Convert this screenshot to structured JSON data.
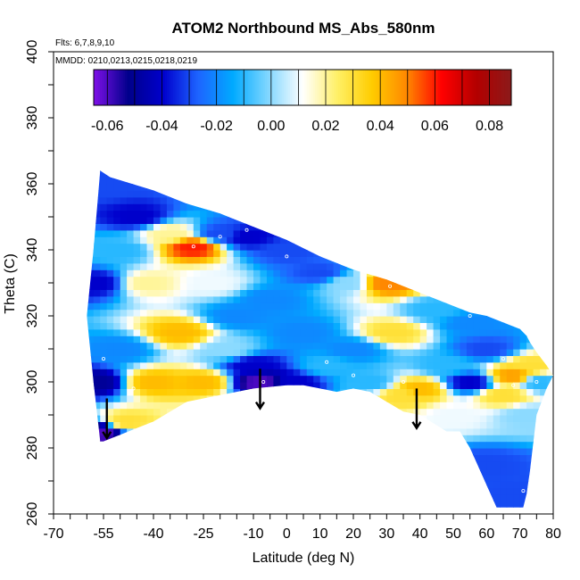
{
  "chart_data": {
    "type": "heatmap",
    "title": "ATOM2 Northbound MS_Abs_580nm",
    "subtitle_flights": "Flts: 6,7,8,9,10",
    "subtitle_dates": "MMDD: 0210,0213,0215,0218,0219",
    "xlabel": "Latitude (deg N)",
    "ylabel": "Theta (C)",
    "xlim": [
      -70,
      80
    ],
    "ylim": [
      260,
      400
    ],
    "x_ticks": [
      "-70",
      "-55",
      "-40",
      "-25",
      "-10",
      "0",
      "10",
      "20",
      "30",
      "40",
      "50",
      "60",
      "70",
      "80"
    ],
    "x_tick_values": [
      -70,
      -55,
      -40,
      -25,
      -10,
      0,
      10,
      20,
      30,
      40,
      50,
      60,
      70,
      80
    ],
    "y_ticks": [
      "260",
      "280",
      "300",
      "320",
      "340",
      "360",
      "380",
      "400"
    ],
    "y_tick_values": [
      260,
      280,
      300,
      320,
      340,
      360,
      380,
      400
    ],
    "colorbar": {
      "range": [
        -0.065,
        0.088
      ],
      "ticks": [
        "-0.06",
        "-0.04",
        "-0.02",
        "0.00",
        "0.02",
        "0.04",
        "0.06",
        "0.08"
      ],
      "tick_values": [
        -0.06,
        -0.04,
        -0.02,
        0.0,
        0.02,
        0.04,
        0.06,
        0.08
      ],
      "colors": [
        "#7f11e8",
        "#00008b",
        "#0000cd",
        "#1e64ff",
        "#00aaff",
        "#7fd6ff",
        "#ffffff",
        "#fff066",
        "#ffcc00",
        "#ff8800",
        "#ff0000",
        "#b30000",
        "#8b1a1a"
      ]
    },
    "upper_boundary": [
      [
        -56,
        364
      ],
      [
        -53,
        362
      ],
      [
        -40,
        358
      ],
      [
        -30,
        354
      ],
      [
        -20,
        351
      ],
      [
        -10,
        347
      ],
      [
        0,
        343
      ],
      [
        10,
        338
      ],
      [
        20,
        334
      ],
      [
        30,
        331
      ],
      [
        40,
        327
      ],
      [
        50,
        323
      ],
      [
        55,
        321
      ],
      [
        60,
        320
      ],
      [
        65,
        318
      ],
      [
        70,
        316
      ],
      [
        72,
        314
      ],
      [
        73,
        312
      ],
      [
        75,
        309
      ],
      [
        78,
        305
      ],
      [
        80,
        302
      ]
    ],
    "lower_boundary": [
      [
        80,
        302
      ],
      [
        78,
        298
      ],
      [
        75,
        290
      ],
      [
        73,
        273
      ],
      [
        72,
        266
      ],
      [
        71,
        262
      ],
      [
        63,
        262
      ],
      [
        55,
        280
      ],
      [
        52,
        285
      ],
      [
        48,
        285
      ],
      [
        40,
        290
      ],
      [
        35,
        291
      ],
      [
        30,
        294
      ],
      [
        25,
        297
      ],
      [
        20,
        298
      ],
      [
        15,
        297
      ],
      [
        10,
        298
      ],
      [
        5,
        299
      ],
      [
        0,
        299
      ],
      [
        -10,
        298
      ],
      [
        -20,
        296
      ],
      [
        -30,
        294
      ],
      [
        -40,
        288
      ],
      [
        -45,
        286
      ],
      [
        -50,
        284
      ],
      [
        -55,
        282
      ],
      [
        -56,
        282
      ],
      [
        -58,
        300
      ],
      [
        -60,
        320
      ],
      [
        -58,
        340
      ],
      [
        -56,
        364
      ]
    ],
    "field_nodes": [
      [
        -57,
        330,
        -0.04
      ],
      [
        -57,
        300,
        -0.05
      ],
      [
        -56,
        285,
        -0.06
      ],
      [
        -55,
        360,
        -0.03
      ],
      [
        -50,
        340,
        -0.01
      ],
      [
        -50,
        310,
        -0.02
      ],
      [
        -48,
        288,
        0.03
      ],
      [
        -45,
        350,
        -0.04
      ],
      [
        -42,
        330,
        0.02
      ],
      [
        -40,
        300,
        0.04
      ],
      [
        -35,
        345,
        0.02
      ],
      [
        -32,
        315,
        0.04
      ],
      [
        -28,
        341,
        0.06
      ],
      [
        -25,
        300,
        0.04
      ],
      [
        -22,
        330,
        0.01
      ],
      [
        -20,
        345,
        -0.03
      ],
      [
        -18,
        310,
        0.0
      ],
      [
        -15,
        320,
        -0.02
      ],
      [
        -12,
        344,
        -0.04
      ],
      [
        -10,
        305,
        -0.04
      ],
      [
        -8,
        300,
        -0.06
      ],
      [
        -5,
        325,
        -0.02
      ],
      [
        0,
        340,
        -0.03
      ],
      [
        2,
        300,
        -0.04
      ],
      [
        5,
        315,
        -0.02
      ],
      [
        10,
        333,
        -0.03
      ],
      [
        12,
        305,
        -0.01
      ],
      [
        18,
        330,
        0.0
      ],
      [
        20,
        310,
        -0.02
      ],
      [
        25,
        300,
        -0.01
      ],
      [
        30,
        330,
        0.05
      ],
      [
        32,
        315,
        0.03
      ],
      [
        35,
        296,
        0.03
      ],
      [
        40,
        298,
        0.04
      ],
      [
        45,
        322,
        -0.01
      ],
      [
        48,
        305,
        -0.01
      ],
      [
        50,
        290,
        0.01
      ],
      [
        55,
        318,
        -0.02
      ],
      [
        55,
        300,
        -0.04
      ],
      [
        60,
        310,
        -0.03
      ],
      [
        60,
        275,
        -0.03
      ],
      [
        65,
        296,
        0.03
      ],
      [
        68,
        302,
        0.045
      ],
      [
        72,
        290,
        0.0
      ],
      [
        73,
        305,
        0.03
      ],
      [
        76,
        300,
        -0.01
      ],
      [
        70,
        265,
        -0.03
      ]
    ],
    "sample_points": [
      [
        -55,
        307
      ],
      [
        -46,
        298
      ],
      [
        -28,
        341
      ],
      [
        -20,
        344
      ],
      [
        -12,
        346
      ],
      [
        -7,
        300
      ],
      [
        0,
        338
      ],
      [
        12,
        306
      ],
      [
        20,
        302
      ],
      [
        31,
        329
      ],
      [
        35,
        300
      ],
      [
        55,
        320
      ],
      [
        65,
        307
      ],
      [
        68,
        299
      ],
      [
        75,
        300
      ],
      [
        71,
        267
      ]
    ],
    "arrows": [
      [
        -54,
        289
      ],
      [
        -8,
        298
      ],
      [
        39,
        292
      ]
    ]
  }
}
